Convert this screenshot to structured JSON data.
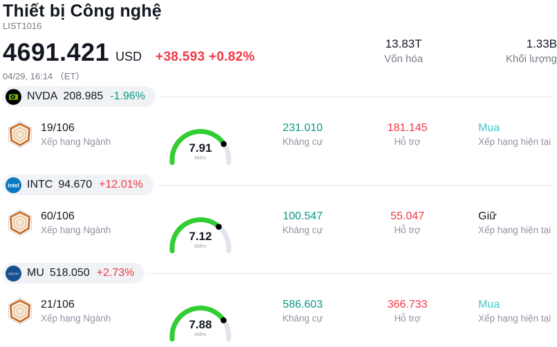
{
  "header": {
    "title": "Thiết bị Công nghệ",
    "list_id": "LIST1016",
    "price": "4691.421",
    "currency": "USD",
    "change": "+38.593 +0.82%",
    "change_color": "#f23645",
    "timestamp": "04/29, 16:14 （ET）",
    "market_cap": {
      "value": "13.83T",
      "label": "Vốn hóa"
    },
    "volume": {
      "value": "1.33B",
      "label": "Khối lượng"
    }
  },
  "labels": {
    "industry_rank": "Xếp hạng Ngành",
    "score": "Điểm",
    "resistance": "Kháng cự",
    "support": "Hỗ trợ",
    "current_rating": "Xếp hạng hiện tại"
  },
  "colors": {
    "up_red": "#f23645",
    "down_teal": "#089981",
    "rating_cyan": "#45c7c6",
    "gauge_green": "#32cd32",
    "gauge_track": "#e2e4ec"
  },
  "stocks": [
    {
      "ticker": "NVDA",
      "logo": "nvidia-logo",
      "price": "208.985",
      "change": "-1.96%",
      "change_color": "#089981",
      "rank": "19/106",
      "score": 7.91,
      "resistance": "231.010",
      "resistance_color": "#089981",
      "support": "181.145",
      "support_color": "#f23645",
      "rating": "Mua",
      "rating_color": "#45c7c6"
    },
    {
      "ticker": "INTC",
      "logo": "intel-logo",
      "price": "94.670",
      "change": "+12.01%",
      "change_color": "#f23645",
      "rank": "60/106",
      "score": 7.12,
      "resistance": "100.547",
      "resistance_color": "#089981",
      "support": "55.047",
      "support_color": "#f23645",
      "rating": "Giữ",
      "rating_color": "#131722"
    },
    {
      "ticker": "MU",
      "logo": "micron-logo",
      "price": "518.050",
      "change": "+2.73%",
      "change_color": "#f23645",
      "rank": "21/106",
      "score": 7.88,
      "resistance": "586.603",
      "resistance_color": "#089981",
      "support": "366.733",
      "support_color": "#f23645",
      "rating": "Mua",
      "rating_color": "#45c7c6"
    }
  ]
}
